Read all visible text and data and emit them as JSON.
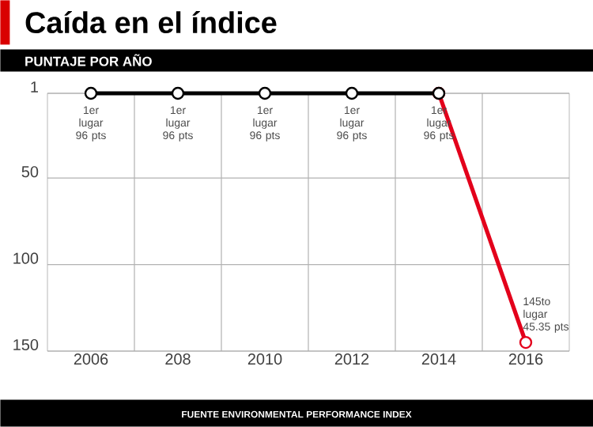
{
  "chart_data": {
    "type": "line",
    "title": "Caída en el índice",
    "subtitle": "PUNTAJE POR AÑO",
    "annotations": [
      "FUENTE ENVIRONMENTAL PERFORMANCE INDEX"
    ],
    "categories": [
      "2006",
      "208",
      "2010",
      "2012",
      "2014",
      "2016"
    ],
    "series": [
      {
        "color": "#e3001b",
        "values": [
          null,
          null,
          null,
          null,
          1,
          145
        ],
        "value_labels": [
          null,
          null,
          null,
          null,
          null,
          "145to lugar 45.35 pts"
        ]
      },
      {
        "color": "#000000",
        "values": [
          1,
          1,
          1,
          1,
          1,
          null
        ],
        "value_labels": [
          "1er lugar 96 pts",
          "1er lugar 96 pts",
          "1er lugar 96 pts",
          "1er lugar 96 pts",
          "1er lugar 96 pts",
          null
        ]
      }
    ],
    "ylim": [
      150,
      1
    ],
    "yticks": [
      1,
      50,
      100,
      150
    ],
    "grid": true,
    "marker": "circle",
    "line_style": "solid"
  }
}
